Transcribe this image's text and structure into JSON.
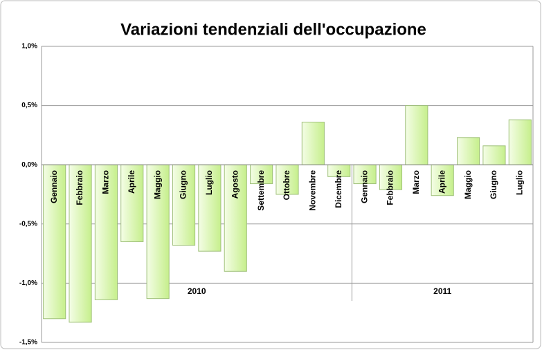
{
  "chart_data": {
    "type": "bar",
    "title": "Variazioni tendenziali dell'occupazione",
    "groups": [
      {
        "label": "2010",
        "categories": [
          "Gennaio",
          "Febbraio",
          "Marzo",
          "Aprile",
          "Maggio",
          "Giugno",
          "Luglio",
          "Agosto",
          "Settembre",
          "Ottobre",
          "Novembre",
          "Dicembre"
        ],
        "values": [
          -1.3,
          -1.33,
          -1.14,
          -0.65,
          -1.13,
          -0.68,
          -0.73,
          -0.9,
          -0.16,
          -0.25,
          0.36,
          -0.1
        ]
      },
      {
        "label": "2011",
        "categories": [
          "Gennaio",
          "Febbraio",
          "Marzo",
          "Aprile",
          "Maggio",
          "Giugno",
          "Luglio"
        ],
        "values": [
          -0.16,
          -0.21,
          0.5,
          -0.26,
          0.23,
          0.16,
          0.38
        ]
      }
    ],
    "color": "#d8f5a8",
    "ylim": [
      -1.5,
      1.0
    ],
    "yticks": [
      {
        "value": -1.5,
        "label": "-1,5%"
      },
      {
        "value": -1.0,
        "label": "-1,0%"
      },
      {
        "value": -0.5,
        "label": "-0,5%"
      },
      {
        "value": 0,
        "label": "0,0%"
      },
      {
        "value": 0.5,
        "label": "0,5%"
      },
      {
        "value": 1.0,
        "label": "1,0%"
      }
    ],
    "grid": true
  }
}
